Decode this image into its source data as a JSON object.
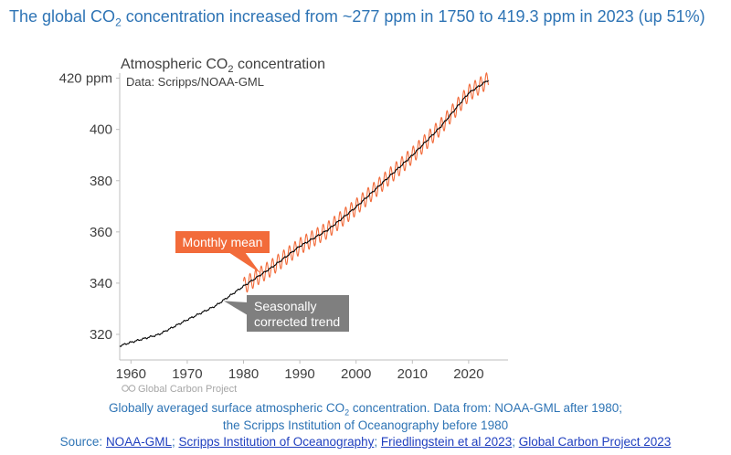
{
  "headline": {
    "part1": "The global CO",
    "sub": "2",
    "part2": " concentration increased from ~277 ppm in 1750 to 419.3 ppm in 2023 (up 51%)"
  },
  "chart_data": {
    "type": "line",
    "title_part1": "Atmospheric CO",
    "title_sub": "2",
    "title_part2": " concentration",
    "subtitle": "Data: Scripps/NOAA-GML",
    "xlim": [
      1958,
      2027
    ],
    "ylim": [
      310,
      422
    ],
    "x_ticks": [
      1960,
      1970,
      1980,
      1990,
      2000,
      2010,
      2020
    ],
    "y_ticks": [
      320,
      340,
      360,
      380,
      400,
      420
    ],
    "y_tick_labels": [
      "320",
      "340",
      "360",
      "380",
      "400",
      "420 ppm"
    ],
    "series": [
      {
        "name": "Seasonally corrected trend",
        "color": "#000000",
        "x": [
          1958,
          1960,
          1965,
          1970,
          1975,
          1980,
          1985,
          1990,
          1995,
          2000,
          2005,
          2010,
          2015,
          2020,
          2023.5
        ],
        "values": [
          315.5,
          316.9,
          320.0,
          325.7,
          331.1,
          338.8,
          346.1,
          354.4,
          360.8,
          369.7,
          379.8,
          389.9,
          401.0,
          414.2,
          419.3
        ]
      },
      {
        "name": "Monthly mean",
        "color": "#f26b3a",
        "x_start": 1980,
        "x_end": 2023.5,
        "seasonal_amplitude_ppm": 3.3
      }
    ],
    "annotations": [
      {
        "text": "Monthly mean",
        "color": "#f26b3a",
        "points_to_year": 1983
      },
      {
        "text_line1": "Seasonally",
        "text_line2": "corrected trend",
        "color": "#7f7f7f",
        "points_to_year": 1976.5
      }
    ],
    "watermark": "Global Carbon Project",
    "grid": false,
    "legend": "none"
  },
  "caption": {
    "line1_part1": "Globally averaged surface atmospheric CO",
    "line1_sub": "2",
    "line1_part2": " concentration. Data from: NOAA-GML after 1980;",
    "line2": "the Scripps Institution of Oceanography before 1980"
  },
  "source": {
    "label": "Source: ",
    "links": [
      "NOAA-GML",
      "Scripps Institution of Oceanography",
      "Friedlingstein et al 2023",
      "Global Carbon Project 2023"
    ],
    "separator": "; "
  },
  "colors": {
    "headline": "#2e74b5",
    "link": "#1f3fbf",
    "monthly": "#f26b3a",
    "trend": "#000000",
    "annotation_gray": "#7f7f7f"
  }
}
